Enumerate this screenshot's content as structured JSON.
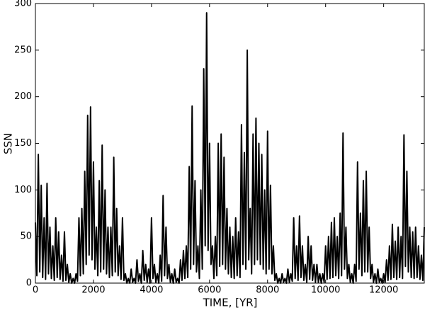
{
  "chart_data": {
    "type": "line",
    "x_label": "TIME, [YR]",
    "y_label": "SSN",
    "xlim": [
      0,
      13400
    ],
    "ylim": [
      0,
      300
    ],
    "xticks": [
      0,
      2000,
      4000,
      6000,
      8000,
      10000,
      12000
    ],
    "yticks": [
      0,
      50,
      100,
      150,
      200,
      250,
      300
    ],
    "x": [
      0,
      50,
      100,
      150,
      200,
      250,
      300,
      350,
      400,
      450,
      500,
      550,
      600,
      650,
      700,
      750,
      800,
      850,
      900,
      950,
      1000,
      1050,
      1100,
      1150,
      1200,
      1250,
      1300,
      1350,
      1400,
      1450,
      1500,
      1550,
      1600,
      1650,
      1700,
      1750,
      1800,
      1850,
      1900,
      1950,
      2000,
      2050,
      2100,
      2150,
      2200,
      2250,
      2300,
      2350,
      2400,
      2450,
      2500,
      2550,
      2600,
      2650,
      2700,
      2750,
      2800,
      2850,
      2900,
      2950,
      3000,
      3050,
      3100,
      3150,
      3200,
      3250,
      3300,
      3350,
      3400,
      3450,
      3500,
      3550,
      3600,
      3650,
      3700,
      3750,
      3800,
      3850,
      3900,
      3950,
      4000,
      4050,
      4100,
      4150,
      4200,
      4250,
      4300,
      4350,
      4400,
      4450,
      4500,
      4550,
      4600,
      4650,
      4700,
      4750,
      4800,
      4850,
      4900,
      4950,
      5000,
      5050,
      5100,
      5150,
      5200,
      5250,
      5300,
      5350,
      5400,
      5450,
      5500,
      5550,
      5600,
      5650,
      5700,
      5750,
      5800,
      5850,
      5900,
      5950,
      6000,
      6050,
      6100,
      6150,
      6200,
      6250,
      6300,
      6350,
      6400,
      6450,
      6500,
      6550,
      6600,
      6650,
      6700,
      6750,
      6800,
      6850,
      6900,
      6950,
      7000,
      7050,
      7100,
      7150,
      7200,
      7250,
      7300,
      7350,
      7400,
      7450,
      7500,
      7550,
      7600,
      7650,
      7700,
      7750,
      7800,
      7850,
      7900,
      7950,
      8000,
      8050,
      8100,
      8150,
      8200,
      8250,
      8300,
      8350,
      8400,
      8450,
      8500,
      8550,
      8600,
      8650,
      8700,
      8750,
      8800,
      8850,
      8900,
      8950,
      9000,
      9050,
      9100,
      9150,
      9200,
      9250,
      9300,
      9350,
      9400,
      9450,
      9500,
      9550,
      9600,
      9650,
      9700,
      9750,
      9800,
      9850,
      9900,
      9950,
      10000,
      10050,
      10100,
      10150,
      10200,
      10250,
      10300,
      10350,
      10400,
      10450,
      10500,
      10550,
      10600,
      10650,
      10700,
      10750,
      10800,
      10850,
      10900,
      10950,
      11000,
      11050,
      11100,
      11150,
      11200,
      11250,
      11300,
      11350,
      11400,
      11450,
      11500,
      11550,
      11600,
      11650,
      11700,
      11750,
      11800,
      11850,
      11900,
      11950,
      12000,
      12050,
      12100,
      12150,
      12200,
      12250,
      12300,
      12350,
      12400,
      12450,
      12500,
      12550,
      12600,
      12650,
      12700,
      12750,
      12800,
      12850,
      12900,
      12950,
      13000,
      13050,
      13100,
      13150,
      13200,
      13250,
      13300,
      13350,
      13400
    ],
    "series": [
      {
        "color": "#000000",
        "values": [
          65,
          8,
          138,
          12,
          105,
          6,
          70,
          4,
          107,
          10,
          60,
          5,
          40,
          3,
          70,
          6,
          55,
          4,
          30,
          2,
          55,
          3,
          20,
          1,
          10,
          0,
          5,
          0,
          10,
          2,
          70,
          8,
          80,
          10,
          120,
          20,
          180,
          30,
          189,
          25,
          130,
          15,
          60,
          8,
          110,
          12,
          148,
          15,
          100,
          10,
          60,
          6,
          60,
          8,
          135,
          12,
          80,
          8,
          40,
          4,
          70,
          3,
          10,
          0,
          5,
          0,
          15,
          1,
          5,
          0,
          25,
          2,
          10,
          0,
          35,
          3,
          20,
          1,
          15,
          0,
          70,
          5,
          20,
          1,
          10,
          0,
          30,
          2,
          94,
          8,
          60,
          5,
          20,
          1,
          10,
          0,
          15,
          1,
          5,
          0,
          25,
          3,
          35,
          5,
          40,
          6,
          125,
          15,
          190,
          20,
          110,
          12,
          40,
          5,
          100,
          15,
          230,
          40,
          290,
          35,
          150,
          20,
          40,
          5,
          50,
          8,
          150,
          18,
          160,
          20,
          135,
          15,
          80,
          10,
          60,
          6,
          50,
          5,
          70,
          8,
          55,
          6,
          170,
          20,
          140,
          15,
          250,
          25,
          80,
          10,
          160,
          20,
          177,
          25,
          150,
          20,
          138,
          15,
          100,
          10,
          163,
          15,
          105,
          10,
          40,
          3,
          10,
          0,
          5,
          0,
          10,
          1,
          5,
          0,
          15,
          1,
          10,
          2,
          70,
          5,
          40,
          3,
          72,
          6,
          40,
          3,
          20,
          1,
          50,
          4,
          40,
          3,
          20,
          1,
          20,
          1,
          10,
          0,
          10,
          1,
          40,
          4,
          50,
          5,
          65,
          6,
          70,
          8,
          50,
          5,
          75,
          8,
          161,
          15,
          60,
          5,
          20,
          1,
          10,
          0,
          20,
          2,
          130,
          15,
          75,
          8,
          110,
          12,
          120,
          12,
          60,
          5,
          20,
          1,
          10,
          0,
          15,
          1,
          5,
          0,
          10,
          1,
          25,
          3,
          40,
          4,
          63,
          6,
          45,
          4,
          60,
          6,
          50,
          5,
          159,
          18,
          120,
          12,
          60,
          6,
          55,
          5,
          60,
          6,
          40,
          4,
          30,
          3,
          60
        ]
      }
    ]
  }
}
